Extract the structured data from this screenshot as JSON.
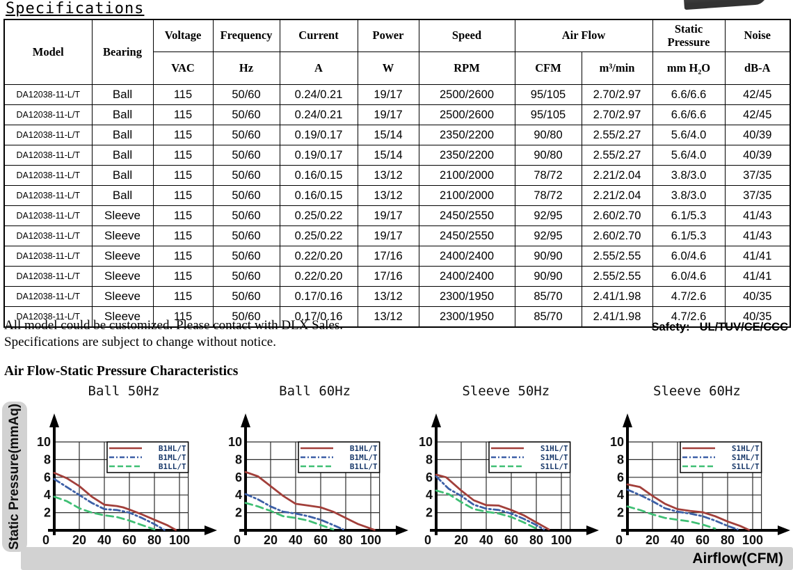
{
  "page_title": "Specifications",
  "table": {
    "headers": {
      "model": "Model",
      "bearing": "Bearing",
      "voltage": "Voltage",
      "frequency": "Frequency",
      "current": "Current",
      "power": "Power",
      "speed": "Speed",
      "airflow": "Air Flow",
      "static_pressure": "Static Pressure",
      "noise": "Noise"
    },
    "units": {
      "vac": "VAC",
      "hz": "Hz",
      "a": "A",
      "w": "W",
      "rpm": "RPM",
      "cfm": "CFM",
      "m3min": "m³/min",
      "mmh2o": "mm H₂O",
      "dba": "dB-A"
    },
    "rows": [
      [
        "DA12038-11-L/T",
        "Ball",
        "115",
        "50/60",
        "0.24/0.21",
        "19/17",
        "2500/2600",
        "95/105",
        "2.70/2.97",
        "6.6/6.6",
        "42/45"
      ],
      [
        "DA12038-11-L/T",
        "Ball",
        "115",
        "50/60",
        "0.24/0.21",
        "19/17",
        "2500/2600",
        "95/105",
        "2.70/2.97",
        "6.6/6.6",
        "42/45"
      ],
      [
        "DA12038-11-L/T",
        "Ball",
        "115",
        "50/60",
        "0.19/0.17",
        "15/14",
        "2350/2200",
        "90/80",
        "2.55/2.27",
        "5.6/4.0",
        "40/39"
      ],
      [
        "DA12038-11-L/T",
        "Ball",
        "115",
        "50/60",
        "0.19/0.17",
        "15/14",
        "2350/2200",
        "90/80",
        "2.55/2.27",
        "5.6/4.0",
        "40/39"
      ],
      [
        "DA12038-11-L/T",
        "Ball",
        "115",
        "50/60",
        "0.16/0.15",
        "13/12",
        "2100/2000",
        "78/72",
        "2.21/2.04",
        "3.8/3.0",
        "37/35"
      ],
      [
        "DA12038-11-L/T",
        "Ball",
        "115",
        "50/60",
        "0.16/0.15",
        "13/12",
        "2100/2000",
        "78/72",
        "2.21/2.04",
        "3.8/3.0",
        "37/35"
      ],
      [
        "DA12038-11-L/T",
        "Sleeve",
        "115",
        "50/60",
        "0.25/0.22",
        "19/17",
        "2450/2550",
        "92/95",
        "2.60/2.70",
        "6.1/5.3",
        "41/43"
      ],
      [
        "DA12038-11-L/T",
        "Sleeve",
        "115",
        "50/60",
        "0.25/0.22",
        "19/17",
        "2450/2550",
        "92/95",
        "2.60/2.70",
        "6.1/5.3",
        "41/43"
      ],
      [
        "DA12038-11-L/T",
        "Sleeve",
        "115",
        "50/60",
        "0.22/0.20",
        "17/16",
        "2400/2400",
        "90/90",
        "2.55/2.55",
        "6.0/4.6",
        "41/41"
      ],
      [
        "DA12038-11-L/T",
        "Sleeve",
        "115",
        "50/60",
        "0.22/0.20",
        "17/16",
        "2400/2400",
        "90/90",
        "2.55/2.55",
        "6.0/4.6",
        "41/41"
      ],
      [
        "DA12038-11-L/T",
        "Sleeve",
        "115",
        "50/60",
        "0.17/0.16",
        "13/12",
        "2300/1950",
        "85/70",
        "2.41/1.98",
        "4.7/2.6",
        "40/35"
      ],
      [
        "DA12038-11-L/T",
        "Sleeve",
        "115",
        "50/60",
        "0.17/0.16",
        "13/12",
        "2300/1950",
        "85/70",
        "2.41/1.98",
        "4.7/2.6",
        "40/35"
      ]
    ]
  },
  "notes": [
    "All model could be customized. Please contact with DLX Sales.",
    "Specifications are subject to change without notice."
  ],
  "safety": {
    "label": "Safety:",
    "value": "UL/TUV/CE/CCC"
  },
  "charts_section": {
    "heading": "Air Flow-Static Pressure Characteristics",
    "ylabel": "Static Pressure(mmAq)",
    "xlabel": "Airflow(CFM)"
  },
  "colors": {
    "red": "#a23f3a",
    "blue": "#3c5fa6",
    "green": "#3fbf74",
    "legend_text": "#1a3a6b",
    "grid": "#2a2a2a",
    "gray_bar": "#d2d2d2"
  },
  "chart_data": [
    {
      "type": "line",
      "title": "Ball 50Hz",
      "xlabel": "Airflow(CFM)",
      "ylabel": "Static Pressure(mmAq)",
      "xlim": [
        0,
        107
      ],
      "ylim": [
        0,
        10
      ],
      "x_ticks": [
        0,
        20,
        40,
        60,
        80,
        100
      ],
      "y_ticks": [
        0,
        2,
        4,
        6,
        8,
        10
      ],
      "grid": true,
      "legend_position": "top-right",
      "series": [
        {
          "name": "B1HL/T",
          "color": "#a23f3a",
          "style": "solid",
          "points": [
            [
              0,
              6.5
            ],
            [
              10,
              5.9
            ],
            [
              20,
              5.0
            ],
            [
              25,
              4.4
            ],
            [
              30,
              3.8
            ],
            [
              40,
              2.9
            ],
            [
              50,
              2.75
            ],
            [
              55,
              2.6
            ],
            [
              60,
              2.35
            ],
            [
              70,
              1.8
            ],
            [
              80,
              1.2
            ],
            [
              90,
              0.6
            ],
            [
              97,
              0.05
            ]
          ]
        },
        {
          "name": "B1ML/T",
          "color": "#3c5fa6",
          "style": "dashdot",
          "points": [
            [
              0,
              5.8
            ],
            [
              10,
              4.9
            ],
            [
              20,
              4.0
            ],
            [
              30,
              3.1
            ],
            [
              40,
              2.4
            ],
            [
              50,
              2.3
            ],
            [
              60,
              2.0
            ],
            [
              70,
              1.4
            ],
            [
              80,
              0.7
            ],
            [
              88,
              0.05
            ]
          ]
        },
        {
          "name": "B1LL/T",
          "color": "#3fbf74",
          "style": "dashed",
          "points": [
            [
              0,
              3.8
            ],
            [
              10,
              3.3
            ],
            [
              20,
              2.5
            ],
            [
              30,
              2.0
            ],
            [
              40,
              1.7
            ],
            [
              50,
              1.5
            ],
            [
              60,
              1.1
            ],
            [
              70,
              0.6
            ],
            [
              80,
              0.1
            ]
          ]
        }
      ]
    },
    {
      "type": "line",
      "title": "Ball 60Hz",
      "xlabel": "Airflow(CFM)",
      "ylabel": "Static Pressure(mmAq)",
      "xlim": [
        0,
        107
      ],
      "ylim": [
        0,
        10
      ],
      "x_ticks": [
        0,
        20,
        40,
        60,
        80,
        100
      ],
      "y_ticks": [
        0,
        2,
        4,
        6,
        8,
        10
      ],
      "grid": true,
      "legend_position": "top-right",
      "series": [
        {
          "name": "B1HL/T",
          "color": "#a23f3a",
          "style": "solid",
          "points": [
            [
              0,
              6.6
            ],
            [
              10,
              6.1
            ],
            [
              20,
              5.0
            ],
            [
              30,
              3.9
            ],
            [
              40,
              3.0
            ],
            [
              50,
              2.8
            ],
            [
              60,
              2.6
            ],
            [
              70,
              2.1
            ],
            [
              80,
              1.4
            ],
            [
              90,
              0.7
            ],
            [
              103,
              0.05
            ]
          ]
        },
        {
          "name": "B1ML/T",
          "color": "#3c5fa6",
          "style": "dashdot",
          "points": [
            [
              0,
              4.1
            ],
            [
              10,
              3.5
            ],
            [
              20,
              2.7
            ],
            [
              30,
              2.1
            ],
            [
              40,
              1.9
            ],
            [
              50,
              1.6
            ],
            [
              60,
              1.2
            ],
            [
              70,
              0.6
            ],
            [
              78,
              0.1
            ]
          ]
        },
        {
          "name": "B1LL/T",
          "color": "#3fbf74",
          "style": "dashed",
          "points": [
            [
              0,
              3.1
            ],
            [
              10,
              2.7
            ],
            [
              20,
              2.2
            ],
            [
              30,
              1.6
            ],
            [
              40,
              1.4
            ],
            [
              50,
              1.1
            ],
            [
              60,
              0.6
            ],
            [
              70,
              0.1
            ]
          ]
        }
      ]
    },
    {
      "type": "line",
      "title": "Sleeve 50Hz",
      "xlabel": "Airflow(CFM)",
      "ylabel": "Static Pressure(mmAq)",
      "xlim": [
        0,
        107
      ],
      "ylim": [
        0,
        10
      ],
      "x_ticks": [
        0,
        20,
        40,
        60,
        80,
        100
      ],
      "y_ticks": [
        0,
        2,
        4,
        6,
        8,
        10
      ],
      "grid": true,
      "legend_position": "top-right",
      "series": [
        {
          "name": "S1HL/T",
          "color": "#a23f3a",
          "style": "solid",
          "points": [
            [
              0,
              6.3
            ],
            [
              8,
              6.0
            ],
            [
              20,
              4.5
            ],
            [
              30,
              3.4
            ],
            [
              40,
              2.85
            ],
            [
              50,
              2.8
            ],
            [
              60,
              2.3
            ],
            [
              70,
              1.7
            ],
            [
              80,
              0.9
            ],
            [
              90,
              0.1
            ]
          ]
        },
        {
          "name": "S1ML/T",
          "color": "#3c5fa6",
          "style": "dashdot",
          "points": [
            [
              0,
              6.1
            ],
            [
              10,
              4.7
            ],
            [
              20,
              3.9
            ],
            [
              30,
              2.9
            ],
            [
              40,
              2.45
            ],
            [
              50,
              2.3
            ],
            [
              60,
              1.9
            ],
            [
              70,
              1.3
            ],
            [
              80,
              0.6
            ],
            [
              86,
              0.1
            ]
          ]
        },
        {
          "name": "S1LL/T",
          "color": "#3fbf74",
          "style": "dashed",
          "points": [
            [
              0,
              4.5
            ],
            [
              10,
              4.1
            ],
            [
              20,
              3.2
            ],
            [
              30,
              2.4
            ],
            [
              40,
              2.1
            ],
            [
              50,
              1.9
            ],
            [
              60,
              1.5
            ],
            [
              70,
              0.9
            ],
            [
              80,
              0.2
            ]
          ]
        }
      ]
    },
    {
      "type": "line",
      "title": "Sleeve 60Hz",
      "xlabel": "Airflow(CFM)",
      "ylabel": "Static Pressure(mmAq)",
      "xlim": [
        0,
        107
      ],
      "ylim": [
        0,
        10
      ],
      "x_ticks": [
        0,
        20,
        40,
        60,
        80,
        100
      ],
      "y_ticks": [
        0,
        2,
        4,
        6,
        8,
        10
      ],
      "grid": true,
      "legend_position": "top-right",
      "series": [
        {
          "name": "S1HL/T",
          "color": "#a23f3a",
          "style": "solid",
          "points": [
            [
              0,
              5.2
            ],
            [
              10,
              4.9
            ],
            [
              20,
              3.9
            ],
            [
              30,
              3.0
            ],
            [
              40,
              2.4
            ],
            [
              50,
              2.2
            ],
            [
              60,
              2.05
            ],
            [
              70,
              1.6
            ],
            [
              80,
              1.0
            ],
            [
              90,
              0.5
            ],
            [
              97,
              0.05
            ]
          ]
        },
        {
          "name": "S1ML/T",
          "color": "#3c5fa6",
          "style": "dashdot",
          "points": [
            [
              0,
              4.6
            ],
            [
              10,
              4.0
            ],
            [
              20,
              3.3
            ],
            [
              30,
              2.5
            ],
            [
              40,
              2.1
            ],
            [
              50,
              1.9
            ],
            [
              60,
              1.6
            ],
            [
              70,
              1.1
            ],
            [
              80,
              0.5
            ],
            [
              88,
              0.1
            ]
          ]
        },
        {
          "name": "S1LL/T",
          "color": "#3fbf74",
          "style": "dashed",
          "points": [
            [
              0,
              2.7
            ],
            [
              10,
              2.3
            ],
            [
              20,
              1.8
            ],
            [
              30,
              1.4
            ],
            [
              40,
              1.2
            ],
            [
              50,
              1.0
            ],
            [
              60,
              0.65
            ],
            [
              70,
              0.2
            ]
          ]
        }
      ]
    }
  ]
}
